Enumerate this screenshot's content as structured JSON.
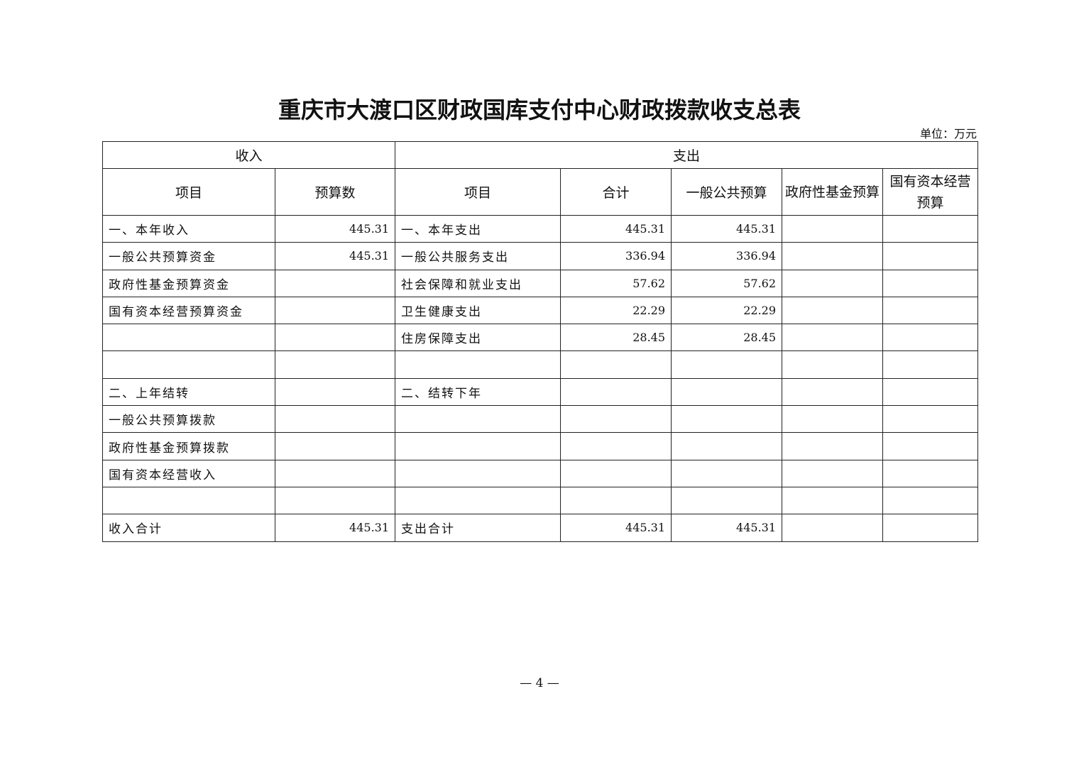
{
  "title": "重庆市大渡口区财政国库支付中心财政拨款收支总表",
  "unit": "单位：万元",
  "header": {
    "income": "收入",
    "expense": "支出",
    "columns": [
      "项目",
      "预算数",
      "项目",
      "合计",
      "一般公共预算",
      "政府性基金预算",
      "国有资本经营预算"
    ]
  },
  "rows": [
    [
      "一、本年收入",
      "445.31",
      "一、本年支出",
      "445.31",
      "445.31",
      "",
      ""
    ],
    [
      "一般公共预算资金",
      "445.31",
      "一般公共服务支出",
      "336.94",
      "336.94",
      "",
      ""
    ],
    [
      "政府性基金预算资金",
      "",
      "社会保障和就业支出",
      "57.62",
      "57.62",
      "",
      ""
    ],
    [
      "国有资本经营预算资金",
      "",
      "卫生健康支出",
      "22.29",
      "22.29",
      "",
      ""
    ],
    [
      "",
      "",
      "住房保障支出",
      "28.45",
      "28.45",
      "",
      ""
    ],
    [
      "",
      "",
      "",
      "",
      "",
      "",
      ""
    ],
    [
      "二、上年结转",
      "",
      "二、结转下年",
      "",
      "",
      "",
      ""
    ],
    [
      "一般公共预算拨款",
      "",
      "",
      "",
      "",
      "",
      ""
    ],
    [
      "政府性基金预算拨款",
      "",
      "",
      "",
      "",
      "",
      ""
    ],
    [
      "国有资本经营收入",
      "",
      "",
      "",
      "",
      "",
      ""
    ],
    [
      "",
      "",
      "",
      "",
      "",
      "",
      ""
    ],
    [
      "收入合计",
      "445.31",
      "支出合计",
      "445.31",
      "445.31",
      "",
      ""
    ]
  ],
  "page_number": "— 4 —"
}
